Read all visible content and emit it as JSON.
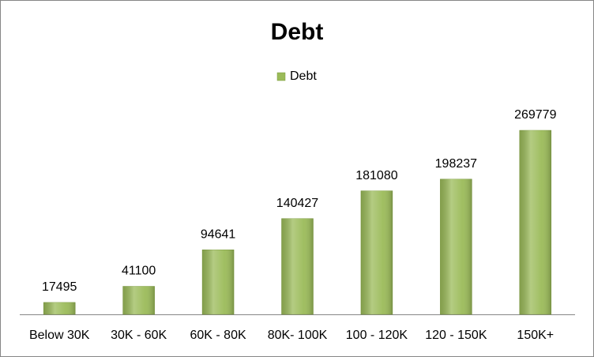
{
  "chart_data": {
    "type": "bar",
    "title": "Debt",
    "categories": [
      "Below 30K",
      "30K - 60K",
      "60K - 80K",
      "80K- 100K",
      "100 - 120K",
      "120 - 150K",
      "150K+"
    ],
    "series": [
      {
        "name": "Debt",
        "color": "#9bbb59",
        "values": [
          17495,
          41100,
          94641,
          140427,
          181080,
          198237,
          269779
        ]
      }
    ],
    "legend": "top"
  }
}
